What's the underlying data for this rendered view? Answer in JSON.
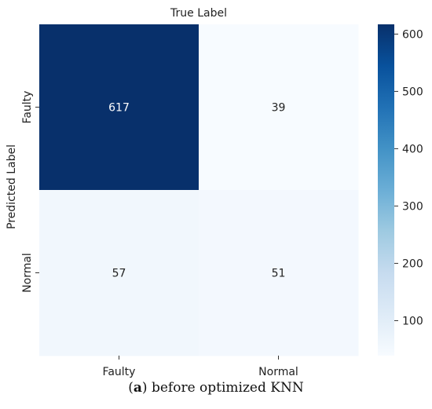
{
  "chart_data": {
    "type": "heatmap",
    "title": "True Label",
    "xlabel": "",
    "ylabel": "Predicted Label",
    "x_categories": [
      "Faulty",
      "Normal"
    ],
    "y_categories": [
      "Faulty",
      "Normal"
    ],
    "values": [
      [
        617,
        39
      ],
      [
        57,
        51
      ]
    ],
    "colormap": "Blues",
    "color_range": [
      39,
      617
    ],
    "colorbar_ticks": [
      100,
      200,
      300,
      400,
      500,
      600
    ],
    "colors": {
      "low": "#f7fbff",
      "high": "#08306b"
    }
  },
  "caption": {
    "label": "a",
    "text": "before optimized KNN"
  }
}
